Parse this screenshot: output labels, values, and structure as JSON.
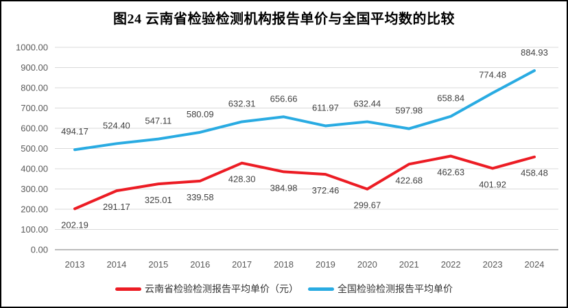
{
  "chart_data": {
    "type": "line",
    "title": "图24 云南省检验检测机构报告单价与全国平均数的比较",
    "categories": [
      "2013",
      "2014",
      "2015",
      "2016",
      "2017",
      "2018",
      "2019",
      "2020",
      "2021",
      "2022",
      "2023",
      "2024"
    ],
    "series": [
      {
        "name": "云南省检验检测报告平均单价（元）",
        "color": "#EC1C24",
        "label_position": "below",
        "values": [
          202.19,
          291.17,
          325.01,
          339.58,
          428.3,
          384.98,
          372.46,
          299.67,
          422.68,
          462.63,
          401.92,
          458.48
        ]
      },
      {
        "name": "全国检验检测报告平均单价",
        "color": "#29ABE2",
        "label_position": "above",
        "values": [
          494.17,
          524.4,
          547.11,
          580.09,
          632.31,
          656.66,
          611.97,
          632.44,
          597.98,
          658.84,
          774.48,
          884.93
        ]
      }
    ],
    "ylim": [
      0,
      1000
    ],
    "ytick_step": 100,
    "value_decimals": 2,
    "grid": "horizontal-only",
    "legend_position": "bottom",
    "colors": {
      "gridline": "#D9D9D9",
      "axis_line": "#A6A6A6",
      "tick_label": "#595959",
      "data_label": "#404040",
      "title": "#000000",
      "background": "#FFFFFF",
      "border": "#000000"
    }
  }
}
